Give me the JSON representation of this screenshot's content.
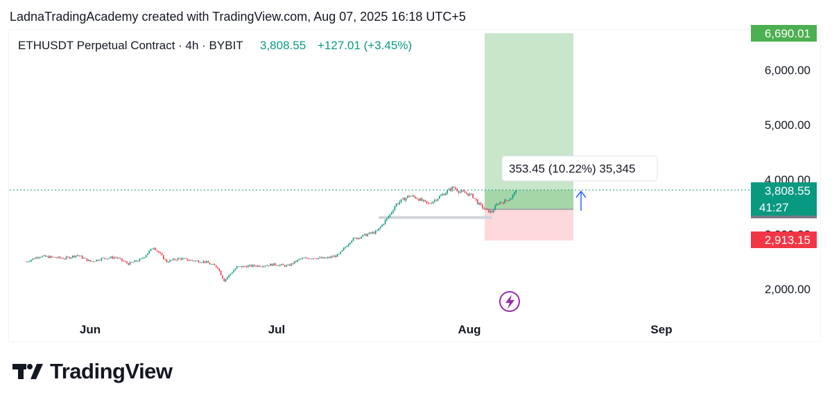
{
  "header": {
    "attribution": "LadnaTradingAcademy created with TradingView.com, Aug 07, 2025 16:18 UTC+5"
  },
  "footer": {
    "brand": "TradingView"
  },
  "colors": {
    "up": "#089981",
    "down": "#f23645",
    "profit_zone": "#c8e6c9",
    "profit_zone_inner": "#a5d6a7",
    "loss_zone": "#fdd9dc",
    "target_label": "#4caf50",
    "stop_label": "#f23645",
    "price_label": "#089981",
    "text": "#131722",
    "arrow": "#2962ff",
    "lightning": "#9c27b0"
  },
  "icons": {
    "lightning": "lightning-bolt-icon",
    "arrow": "up-arrow-icon",
    "logo": "tradingview-logo-icon"
  },
  "chart_data": {
    "type": "candlestick",
    "title": "ETHUSDT Perpetual Contract · 4h · BYBIT",
    "last_price": "3,808.55",
    "change": "+127.01 (+3.45%)",
    "countdown": "41:27",
    "y_axis": {
      "ticks": [
        "6,000.00",
        "5,000.00",
        "4,000.00",
        "3,000.00",
        "2,000.00"
      ],
      "tick_values": [
        6000,
        5000,
        4000,
        3000,
        2000
      ]
    },
    "x_axis": {
      "ticks": [
        "Jun",
        "Jul",
        "Aug",
        "Sep"
      ]
    },
    "price_labels": {
      "target": "6,690.01",
      "stop": "2,913.15",
      "current": "3,808.55"
    },
    "target_price": 6690.01,
    "stop_price": 2913.15,
    "entry_price": 3455,
    "current_price": 3808.55,
    "position_info": "353.45 (10.22%) 35,345",
    "support_level": 3330,
    "price_path": [
      [
        "2025-05-22",
        2500
      ],
      [
        "2025-05-24",
        2600
      ],
      [
        "2025-05-28",
        2560
      ],
      [
        "2025-05-30",
        2620
      ],
      [
        "2025-06-01",
        2500
      ],
      [
        "2025-06-03",
        2560
      ],
      [
        "2025-06-05",
        2580
      ],
      [
        "2025-06-07",
        2460
      ],
      [
        "2025-06-09",
        2540
      ],
      [
        "2025-06-11",
        2770
      ],
      [
        "2025-06-13",
        2500
      ],
      [
        "2025-06-15",
        2560
      ],
      [
        "2025-06-17",
        2520
      ],
      [
        "2025-06-19",
        2500
      ],
      [
        "2025-06-21",
        2400
      ],
      [
        "2025-06-22",
        2150
      ],
      [
        "2025-06-24",
        2400
      ],
      [
        "2025-06-26",
        2420
      ],
      [
        "2025-06-28",
        2430
      ],
      [
        "2025-06-30",
        2450
      ],
      [
        "2025-07-02",
        2420
      ],
      [
        "2025-07-04",
        2550
      ],
      [
        "2025-07-06",
        2570
      ],
      [
        "2025-07-08",
        2560
      ],
      [
        "2025-07-10",
        2620
      ],
      [
        "2025-07-12",
        2900
      ],
      [
        "2025-07-14",
        2980
      ],
      [
        "2025-07-16",
        3050
      ],
      [
        "2025-07-18",
        3350
      ],
      [
        "2025-07-19",
        3550
      ],
      [
        "2025-07-21",
        3700
      ],
      [
        "2025-07-22",
        3680
      ],
      [
        "2025-07-24",
        3550
      ],
      [
        "2025-07-25",
        3620
      ],
      [
        "2025-07-27",
        3780
      ],
      [
        "2025-07-28",
        3860
      ],
      [
        "2025-07-29",
        3780
      ],
      [
        "2025-07-30",
        3750
      ],
      [
        "2025-07-31",
        3700
      ],
      [
        "2025-08-01",
        3550
      ],
      [
        "2025-08-02",
        3450
      ],
      [
        "2025-08-03",
        3400
      ],
      [
        "2025-08-04",
        3570
      ],
      [
        "2025-08-05",
        3600
      ],
      [
        "2025-08-06",
        3660
      ],
      [
        "2025-08-07",
        3808.55
      ]
    ]
  }
}
